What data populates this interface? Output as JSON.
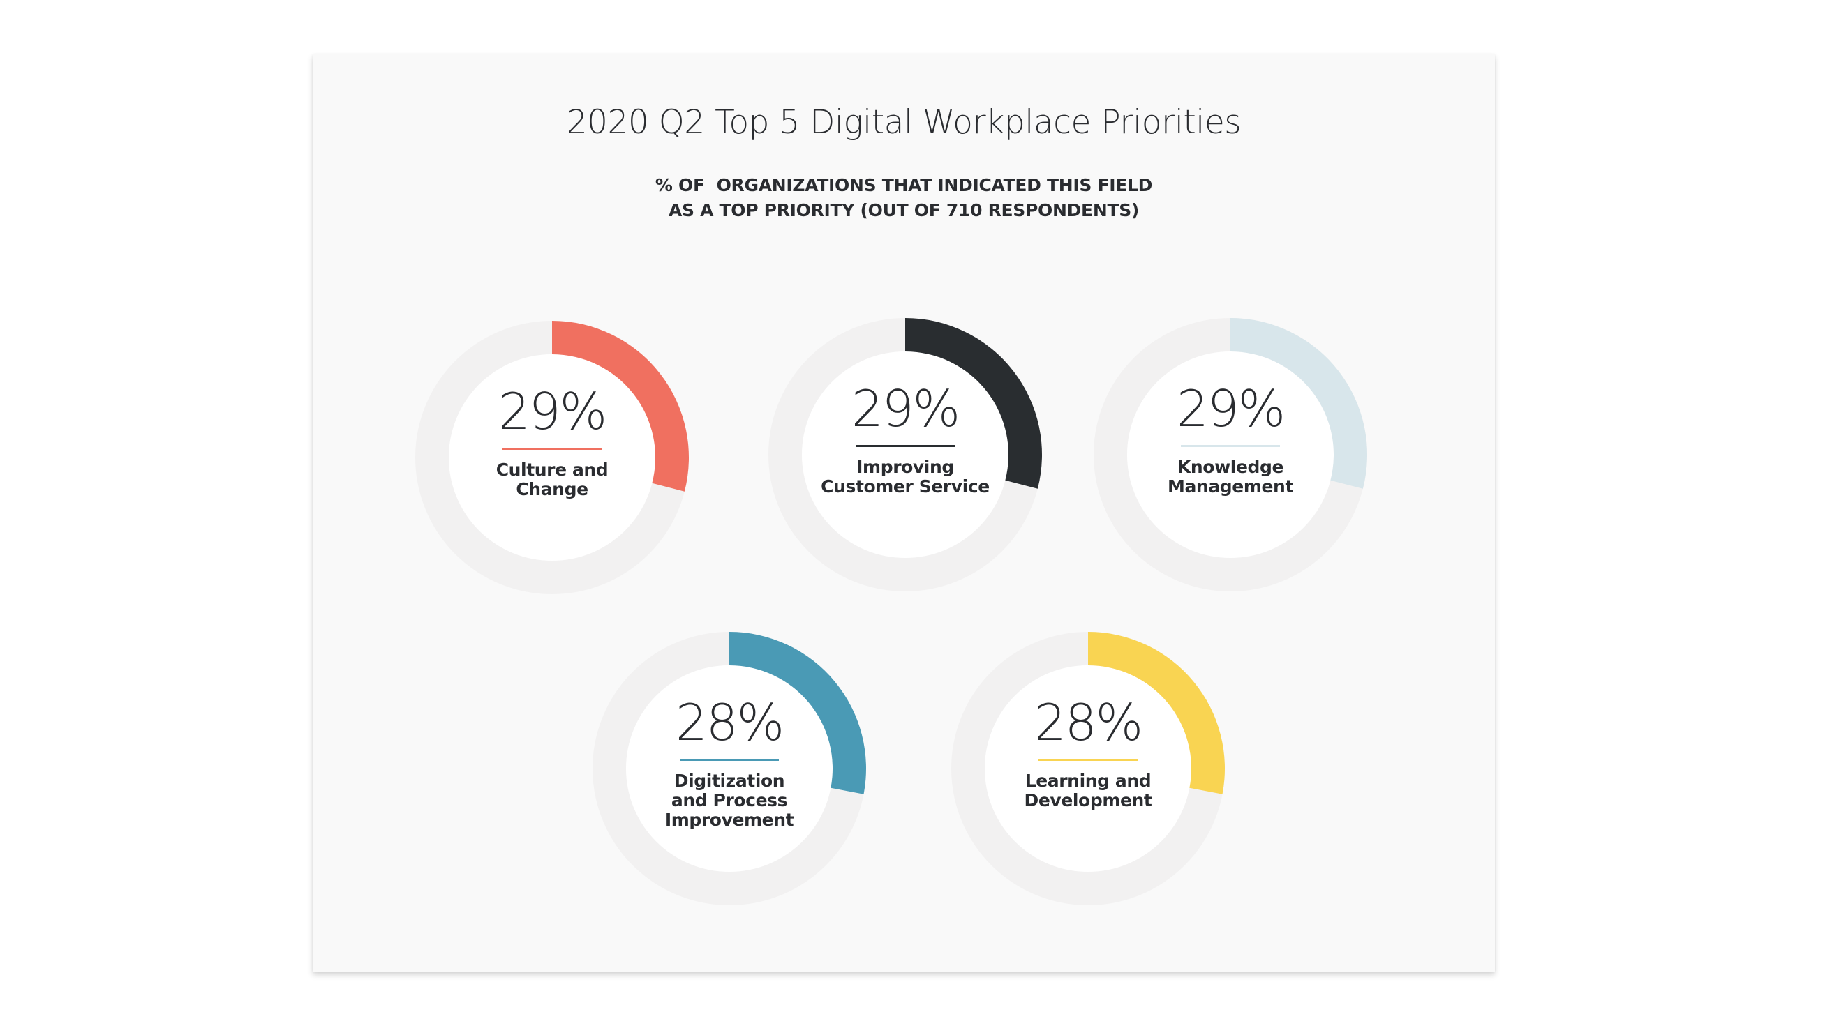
{
  "chart_data": {
    "type": "pie",
    "title": "2020 Q2 Top 5 Digital Workplace Priorities",
    "subtitle_lines": [
      "% OF  ORGANIZATIONS THAT INDICATED THIS FIELD",
      "AS A TOP PRIORITY (OUT OF 710 RESPONDENTS)"
    ],
    "unit": "%",
    "items": [
      {
        "value": 29,
        "display": "29%",
        "label_lines": [
          "Culture and",
          "Change"
        ],
        "color": "#f07060"
      },
      {
        "value": 29,
        "display": "29%",
        "label_lines": [
          "Improving",
          "Customer Service"
        ],
        "color": "#292d30"
      },
      {
        "value": 29,
        "display": "29%",
        "label_lines": [
          "Knowledge",
          "Management"
        ],
        "color": "#d8e6eb"
      },
      {
        "value": 28,
        "display": "28%",
        "label_lines": [
          "Digitization",
          "and Process",
          "Improvement"
        ],
        "color": "#4a9ab5"
      },
      {
        "value": 28,
        "display": "28%",
        "label_lines": [
          "Learning and",
          "Development"
        ],
        "color": "#f9d452"
      }
    ]
  },
  "colors": {
    "track": "#f2f1f1",
    "center": "#ffffff",
    "card_background": "#f9f9f9",
    "text": "#2a2c30"
  }
}
